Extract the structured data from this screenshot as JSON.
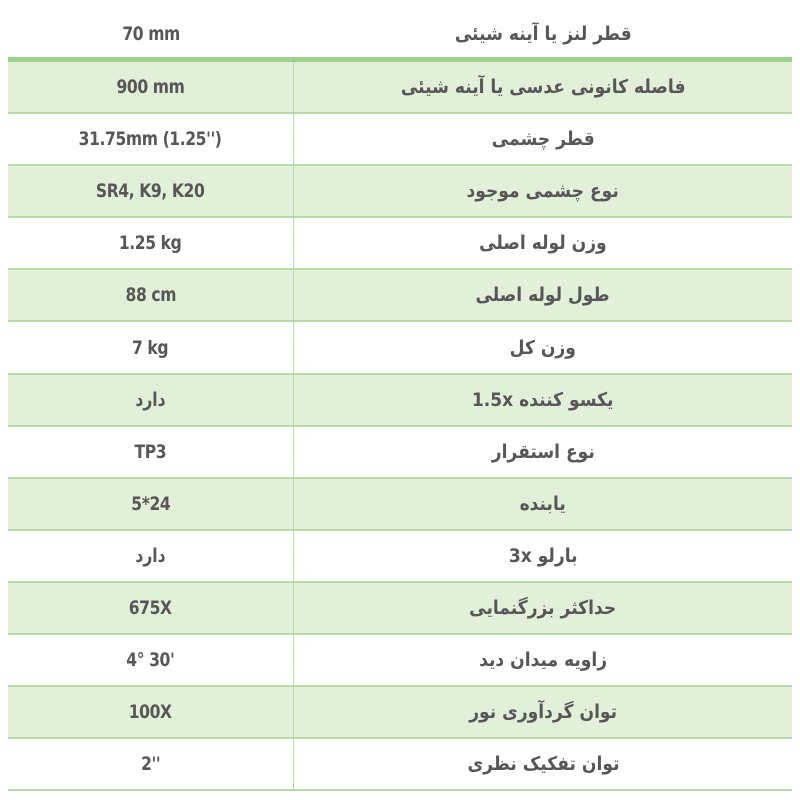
{
  "colors": {
    "row_green": "#e2f0d9",
    "line_green": "#b5dca6",
    "text": "#575757"
  },
  "rows": [
    {
      "key": "قطر لنز یا آینه شیئی",
      "value": "70 mm"
    },
    {
      "key": "فاصله کانونی عدسی یا آینه شیئی",
      "value": "900 mm"
    },
    {
      "key": "قطر چشمی",
      "value": "31.75mm (1.25'')"
    },
    {
      "key": "نوع چشمی موجود",
      "value": "SR4, K9, K20"
    },
    {
      "key": "وزن لوله اصلی",
      "value": "1.25 kg"
    },
    {
      "key": "طول لوله اصلی",
      "value": "88 cm"
    },
    {
      "key": "وزن کل",
      "value": "7 kg"
    },
    {
      "key": "یکسو کننده 1.5x",
      "value": "دارد"
    },
    {
      "key": "نوع استقرار",
      "value": "TP3"
    },
    {
      "key": "یابنده",
      "value": "5*24"
    },
    {
      "key": "بارلو 3x",
      "value": "دارد"
    },
    {
      "key": "حداکثر بزرگنمایی",
      "value": "675X"
    },
    {
      "key": "زاویه میدان دید",
      "value": "4° 30'"
    },
    {
      "key": "توان گردآوری نور",
      "value": "100X"
    },
    {
      "key": "توان تفکیک نظری",
      "value": "2''"
    }
  ]
}
